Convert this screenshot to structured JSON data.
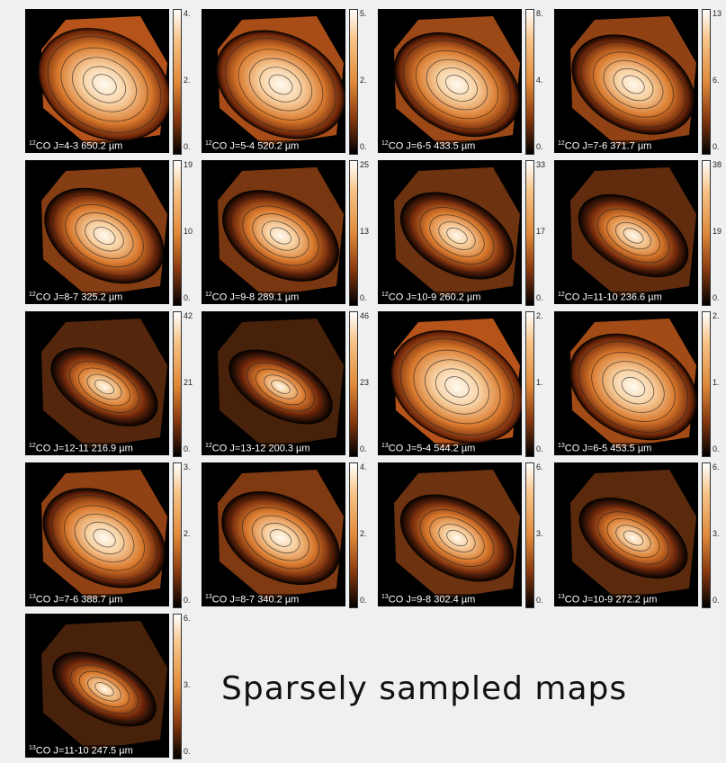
{
  "panels": [
    {
      "iso": "12",
      "label": "CO J=4-3  650.2 µm",
      "ticks": [
        "4.",
        "2.",
        "0."
      ]
    },
    {
      "iso": "12",
      "label": "CO J=5-4  520.2 µm",
      "ticks": [
        "5.",
        "2.",
        "0."
      ]
    },
    {
      "iso": "12",
      "label": "CO J=6-5  433.5 µm",
      "ticks": [
        "8.",
        "4.",
        "0."
      ]
    },
    {
      "iso": "12",
      "label": "CO J=7-6  371.7 µm",
      "ticks": [
        "13",
        "6.",
        "0."
      ]
    },
    {
      "iso": "12",
      "label": "CO J=8-7  325.2 µm",
      "ticks": [
        "19",
        "10",
        "0."
      ]
    },
    {
      "iso": "12",
      "label": "CO J=9-8  289.1 µm",
      "ticks": [
        "25",
        "13",
        "0."
      ]
    },
    {
      "iso": "12",
      "label": "CO J=10-9  260.2 µm",
      "ticks": [
        "33",
        "17",
        "0."
      ]
    },
    {
      "iso": "12",
      "label": "CO J=11-10  236.6 µm",
      "ticks": [
        "38",
        "19",
        "0."
      ]
    },
    {
      "iso": "12",
      "label": "CO J=12-11  216.9 µm",
      "ticks": [
        "42",
        "21",
        "0."
      ]
    },
    {
      "iso": "12",
      "label": "CO J=13-12  200.3 µm",
      "ticks": [
        "46",
        "23",
        "0."
      ]
    },
    {
      "iso": "13",
      "label": "CO J=5-4  544.2 µm",
      "ticks": [
        "2.",
        "1.",
        "0."
      ]
    },
    {
      "iso": "13",
      "label": "CO J=6-5  453.5 µm",
      "ticks": [
        "2.",
        "1.",
        "0."
      ]
    },
    {
      "iso": "13",
      "label": "CO J=7-6  388.7 µm",
      "ticks": [
        "3.",
        "2.",
        "0."
      ]
    },
    {
      "iso": "13",
      "label": "CO J=8-7  340.2 µm",
      "ticks": [
        "4.",
        "2.",
        "0."
      ]
    },
    {
      "iso": "13",
      "label": "CO J=9-8  302.4 µm",
      "ticks": [
        "6.",
        "3.",
        "0."
      ]
    },
    {
      "iso": "13",
      "label": "CO J=10-9  272.2 µm",
      "ticks": [
        "6.",
        "3.",
        "0."
      ]
    },
    {
      "iso": "13",
      "label": "CO J=11-10  247.5 µm",
      "ticks": [
        "6.",
        "3.",
        "0."
      ]
    }
  ],
  "caption": "Sparsely sampled maps"
}
